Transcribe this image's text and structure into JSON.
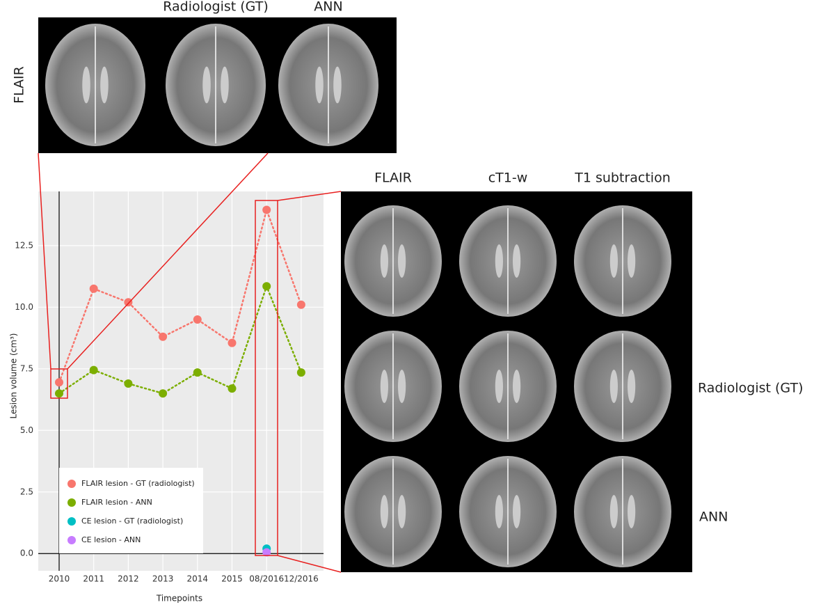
{
  "chart_data": {
    "type": "line",
    "ylabel": "Lesion volume (cm³)",
    "xlabel": "Timepoints",
    "categories": [
      "2010",
      "2011",
      "2012",
      "2013",
      "2014",
      "2015",
      "08/2016",
      "12/2016"
    ],
    "series": [
      {
        "name": "FLAIR lesion - GT (radiologist)",
        "color": "#f8766d",
        "values": [
          6.95,
          10.75,
          10.2,
          8.8,
          9.5,
          8.55,
          13.95,
          10.1
        ]
      },
      {
        "name": "FLAIR lesion - ANN",
        "color": "#7cae00",
        "values": [
          6.5,
          7.45,
          6.9,
          6.5,
          7.35,
          6.7,
          10.85,
          7.35
        ]
      },
      {
        "name": "CE lesion - GT (radiologist)",
        "color": "#00bfc4",
        "values": [
          null,
          null,
          null,
          null,
          null,
          null,
          0.2,
          null
        ]
      },
      {
        "name": "CE lesion - ANN",
        "color": "#c77cff",
        "values": [
          null,
          null,
          null,
          null,
          null,
          null,
          0.05,
          null
        ]
      }
    ],
    "ylim": [
      -0.7,
      14.7
    ],
    "yticks": [
      {
        "value": 0,
        "label": "0.0"
      },
      {
        "value": 2.5,
        "label": "2.5"
      },
      {
        "value": 5,
        "label": "5.0"
      },
      {
        "value": 7.5,
        "label": "7.5"
      },
      {
        "value": 10,
        "label": "10.0"
      },
      {
        "value": 12.5,
        "label": "12.5"
      }
    ],
    "grid": true,
    "legend": "lower left"
  },
  "top_panel": {
    "row_label": "FLAIR",
    "columns": [
      "Radiologist (GT)",
      "ANN"
    ]
  },
  "right_panel": {
    "columns": [
      "FLAIR",
      "cT1-w",
      "T1 subtraction"
    ],
    "rows": [
      "Radiologist (GT)",
      "ANN"
    ]
  }
}
